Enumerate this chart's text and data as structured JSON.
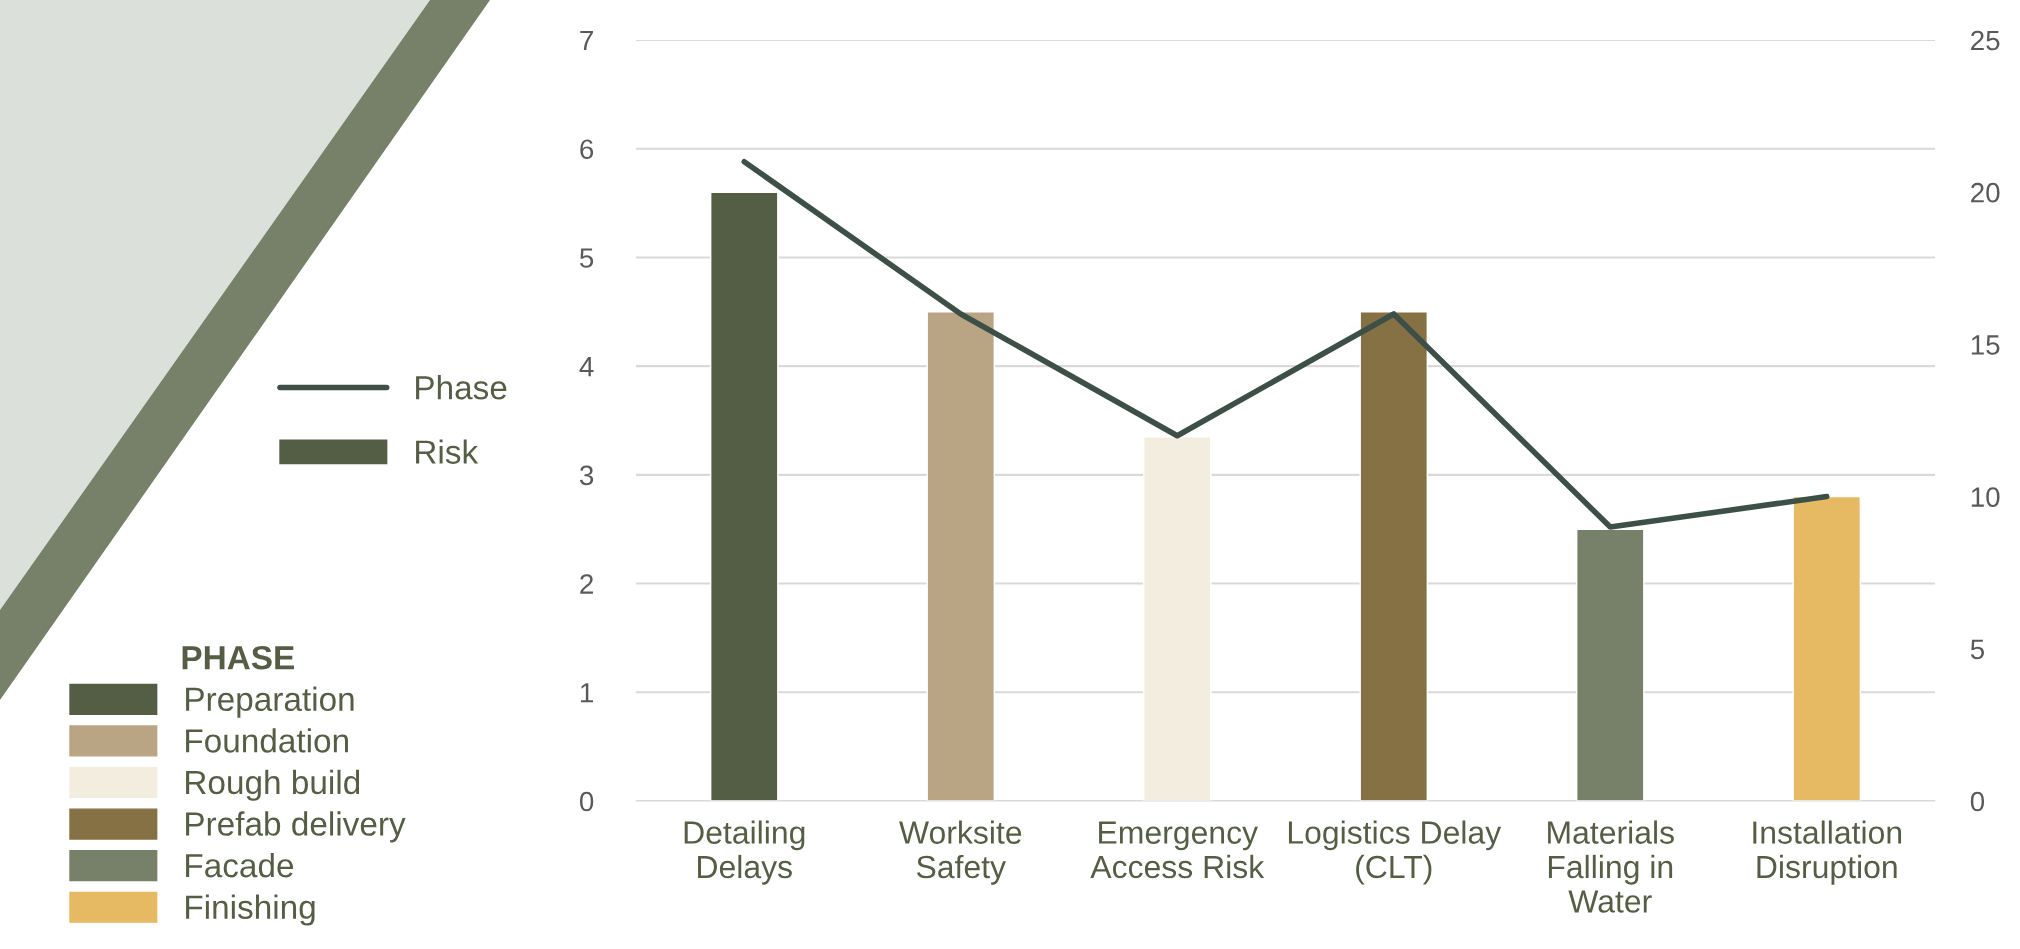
{
  "chart_data": {
    "type": "bar",
    "categories": [
      "Detailing\nDelays",
      "Worksite\nSafety",
      "Emergency\nAccess Risk",
      "Logistics Delay\n(CLT)",
      "Materials\nFalling in\nWater",
      "Installation\nDisruption"
    ],
    "series": [
      {
        "name": "Risk",
        "color": "#545e45",
        "colors": [
          "#545e45",
          "#b9a584",
          "#f3eddf",
          "#857144",
          "#778068",
          "#e6b963"
        ],
        "values": [
          5.6,
          4.5,
          3.35,
          4.5,
          2.5,
          2.8
        ]
      },
      {
        "name": "Phase",
        "type": "line",
        "axis": "y2",
        "color": "#3d5048",
        "values": [
          21,
          16,
          12,
          16,
          9,
          10
        ]
      }
    ],
    "legend_title": "PHASE",
    "annotations": [
      "Preparation",
      "Foundation",
      "Rough build",
      "Prefab delivery",
      "Facade",
      "Finishing"
    ],
    "ylim": [
      0,
      7
    ],
    "yticks": [
      0,
      1,
      2,
      3,
      4,
      5,
      6,
      7
    ],
    "y2lim": [
      0,
      25
    ],
    "y2ticks": [
      0,
      5,
      10,
      15,
      20,
      25
    ],
    "grid": "y",
    "legend": "left",
    "marker": "none",
    "line_style": "solid"
  }
}
